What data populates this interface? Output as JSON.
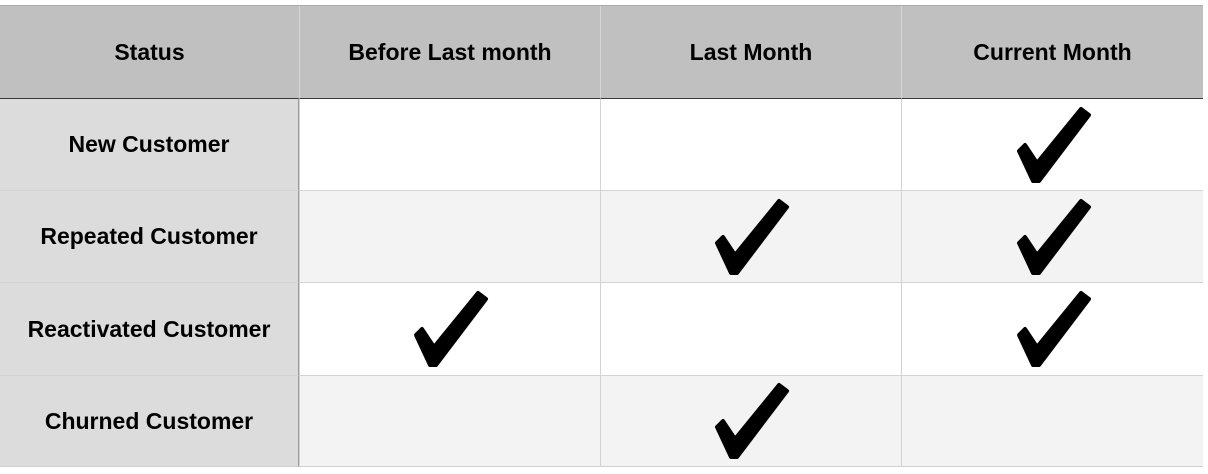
{
  "table": {
    "headers": [
      "Status",
      "Before Last month",
      "Last Month",
      "Current Month"
    ],
    "rows": [
      {
        "label": "New Customer",
        "checks": [
          false,
          false,
          true
        ]
      },
      {
        "label": "Repeated Customer",
        "checks": [
          false,
          true,
          true
        ]
      },
      {
        "label": "Reactivated Customer",
        "checks": [
          true,
          false,
          true
        ]
      },
      {
        "label": "Churned Customer",
        "checks": [
          false,
          true,
          false
        ]
      }
    ]
  },
  "icons": {
    "check": "checkmark-icon"
  },
  "colors": {
    "header_bg": "#bfc0bf",
    "row_label_bg": "#dcdcdc",
    "row_alt_bg": "#f3f3f3",
    "check": "#000000"
  }
}
